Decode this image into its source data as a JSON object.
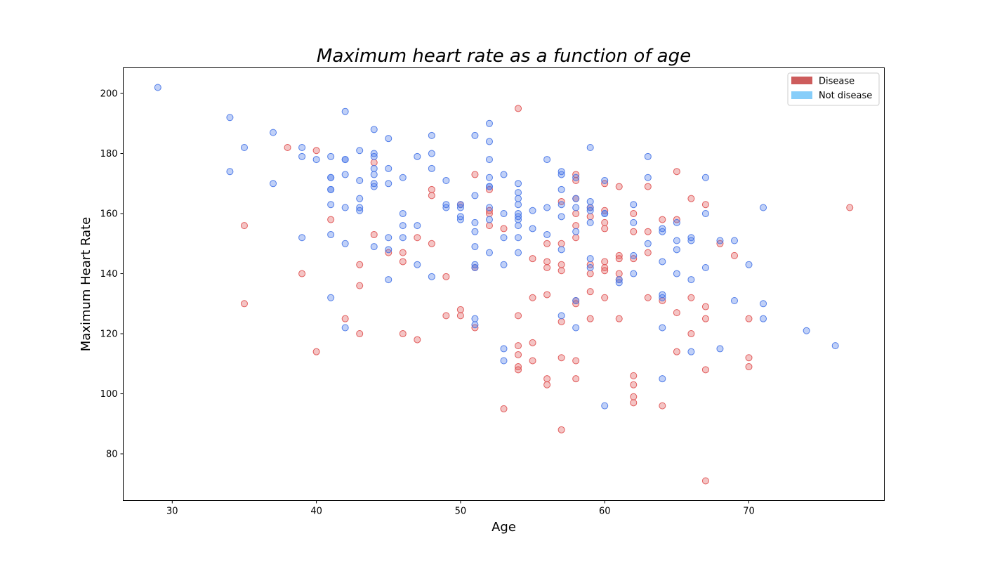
{
  "chart_data": {
    "type": "scatter",
    "title": "Maximum heart rate as a function of age",
    "xlabel": "Age",
    "ylabel": "Maximum Heart Rate",
    "xlim": [
      26.6,
      79.4
    ],
    "ylim": [
      64.45,
      208.55
    ],
    "xticks": [
      30,
      40,
      50,
      60,
      70
    ],
    "yticks": [
      80,
      100,
      120,
      140,
      160,
      180,
      200
    ],
    "grid": false,
    "legend_position": "top-right",
    "series": [
      {
        "name": "Disease",
        "color": "#e05555",
        "legend_color": "#cd5c5c",
        "points": [
          [
            38,
            182
          ],
          [
            40,
            181
          ],
          [
            44,
            177
          ],
          [
            35,
            156
          ],
          [
            41,
            158
          ],
          [
            35,
            130
          ],
          [
            39,
            140
          ],
          [
            40,
            114
          ],
          [
            42,
            125
          ],
          [
            43,
            120
          ],
          [
            43,
            136
          ],
          [
            43,
            143
          ],
          [
            44,
            153
          ],
          [
            45,
            147
          ],
          [
            46,
            147
          ],
          [
            46,
            144
          ],
          [
            46,
            120
          ],
          [
            47,
            152
          ],
          [
            47,
            118
          ],
          [
            48,
            168
          ],
          [
            48,
            166
          ],
          [
            48,
            150
          ],
          [
            49,
            139
          ],
          [
            49,
            126
          ],
          [
            50,
            163
          ],
          [
            50,
            128
          ],
          [
            50,
            126
          ],
          [
            51,
            173
          ],
          [
            51,
            142
          ],
          [
            51,
            122
          ],
          [
            52,
            168
          ],
          [
            52,
            161
          ],
          [
            52,
            160
          ],
          [
            52,
            156
          ],
          [
            53,
            155
          ],
          [
            53,
            95
          ],
          [
            54,
            195
          ],
          [
            54,
            126
          ],
          [
            54,
            116
          ],
          [
            54,
            113
          ],
          [
            54,
            109
          ],
          [
            54,
            108
          ],
          [
            55,
            145
          ],
          [
            55,
            132
          ],
          [
            55,
            117
          ],
          [
            55,
            111
          ],
          [
            56,
            150
          ],
          [
            56,
            144
          ],
          [
            56,
            142
          ],
          [
            56,
            133
          ],
          [
            56,
            105
          ],
          [
            56,
            103
          ],
          [
            57,
            164
          ],
          [
            57,
            150
          ],
          [
            57,
            143
          ],
          [
            57,
            141
          ],
          [
            57,
            124
          ],
          [
            57,
            112
          ],
          [
            57,
            88
          ],
          [
            58,
            173
          ],
          [
            58,
            171
          ],
          [
            58,
            165
          ],
          [
            58,
            160
          ],
          [
            58,
            156
          ],
          [
            58,
            152
          ],
          [
            58,
            131
          ],
          [
            58,
            130
          ],
          [
            58,
            111
          ],
          [
            58,
            105
          ],
          [
            59,
            162
          ],
          [
            59,
            159
          ],
          [
            59,
            143
          ],
          [
            59,
            140
          ],
          [
            59,
            134
          ],
          [
            59,
            125
          ],
          [
            60,
            170
          ],
          [
            60,
            161
          ],
          [
            60,
            157
          ],
          [
            60,
            155
          ],
          [
            60,
            144
          ],
          [
            60,
            142
          ],
          [
            60,
            141
          ],
          [
            60,
            132
          ],
          [
            61,
            169
          ],
          [
            61,
            146
          ],
          [
            61,
            145
          ],
          [
            61,
            140
          ],
          [
            61,
            138
          ],
          [
            61,
            125
          ],
          [
            62,
            160
          ],
          [
            62,
            154
          ],
          [
            62,
            145
          ],
          [
            62,
            106
          ],
          [
            62,
            103
          ],
          [
            62,
            99
          ],
          [
            62,
            97
          ],
          [
            63,
            169
          ],
          [
            63,
            154
          ],
          [
            63,
            147
          ],
          [
            63,
            132
          ],
          [
            64,
            158
          ],
          [
            64,
            131
          ],
          [
            64,
            96
          ],
          [
            65,
            174
          ],
          [
            65,
            158
          ],
          [
            65,
            127
          ],
          [
            65,
            114
          ],
          [
            66,
            165
          ],
          [
            66,
            132
          ],
          [
            66,
            120
          ],
          [
            67,
            163
          ],
          [
            67,
            129
          ],
          [
            67,
            125
          ],
          [
            67,
            108
          ],
          [
            67,
            71
          ],
          [
            68,
            150
          ],
          [
            69,
            146
          ],
          [
            70,
            125
          ],
          [
            70,
            112
          ],
          [
            70,
            109
          ],
          [
            77,
            162
          ]
        ]
      },
      {
        "name": "Not disease",
        "color": "#4a78e8",
        "legend_color": "#87cefa",
        "points": [
          [
            29,
            202
          ],
          [
            34,
            192
          ],
          [
            34,
            174
          ],
          [
            35,
            182
          ],
          [
            37,
            187
          ],
          [
            37,
            170
          ],
          [
            39,
            182
          ],
          [
            39,
            179
          ],
          [
            39,
            152
          ],
          [
            40,
            178
          ],
          [
            41,
            179
          ],
          [
            41,
            172
          ],
          [
            41,
            172
          ],
          [
            41,
            168
          ],
          [
            41,
            168
          ],
          [
            41,
            163
          ],
          [
            41,
            153
          ],
          [
            41,
            132
          ],
          [
            42,
            194
          ],
          [
            42,
            178
          ],
          [
            42,
            178
          ],
          [
            42,
            173
          ],
          [
            42,
            162
          ],
          [
            42,
            150
          ],
          [
            42,
            122
          ],
          [
            43,
            181
          ],
          [
            43,
            171
          ],
          [
            43,
            165
          ],
          [
            43,
            162
          ],
          [
            43,
            161
          ],
          [
            44,
            188
          ],
          [
            44,
            180
          ],
          [
            44,
            179
          ],
          [
            44,
            175
          ],
          [
            44,
            173
          ],
          [
            44,
            170
          ],
          [
            44,
            169
          ],
          [
            44,
            149
          ],
          [
            45,
            185
          ],
          [
            45,
            175
          ],
          [
            45,
            170
          ],
          [
            45,
            152
          ],
          [
            45,
            148
          ],
          [
            45,
            138
          ],
          [
            46,
            172
          ],
          [
            46,
            160
          ],
          [
            46,
            156
          ],
          [
            46,
            152
          ],
          [
            47,
            179
          ],
          [
            47,
            156
          ],
          [
            47,
            143
          ],
          [
            48,
            186
          ],
          [
            48,
            180
          ],
          [
            48,
            175
          ],
          [
            48,
            139
          ],
          [
            49,
            171
          ],
          [
            49,
            163
          ],
          [
            49,
            162
          ],
          [
            50,
            163
          ],
          [
            50,
            162
          ],
          [
            50,
            159
          ],
          [
            50,
            158
          ],
          [
            51,
            186
          ],
          [
            51,
            166
          ],
          [
            51,
            157
          ],
          [
            51,
            154
          ],
          [
            51,
            149
          ],
          [
            51,
            143
          ],
          [
            51,
            142
          ],
          [
            51,
            125
          ],
          [
            51,
            123
          ],
          [
            52,
            190
          ],
          [
            52,
            184
          ],
          [
            52,
            178
          ],
          [
            52,
            172
          ],
          [
            52,
            169
          ],
          [
            52,
            169
          ],
          [
            52,
            162
          ],
          [
            52,
            158
          ],
          [
            52,
            147
          ],
          [
            53,
            173
          ],
          [
            53,
            160
          ],
          [
            53,
            152
          ],
          [
            53,
            143
          ],
          [
            53,
            115
          ],
          [
            53,
            111
          ],
          [
            54,
            170
          ],
          [
            54,
            167
          ],
          [
            54,
            165
          ],
          [
            54,
            163
          ],
          [
            54,
            160
          ],
          [
            54,
            159
          ],
          [
            54,
            158
          ],
          [
            54,
            156
          ],
          [
            54,
            152
          ],
          [
            54,
            147
          ],
          [
            55,
            161
          ],
          [
            55,
            155
          ],
          [
            56,
            178
          ],
          [
            56,
            162
          ],
          [
            56,
            153
          ],
          [
            57,
            174
          ],
          [
            57,
            173
          ],
          [
            57,
            168
          ],
          [
            57,
            163
          ],
          [
            57,
            159
          ],
          [
            57,
            148
          ],
          [
            57,
            126
          ],
          [
            58,
            172
          ],
          [
            58,
            165
          ],
          [
            58,
            162
          ],
          [
            58,
            154
          ],
          [
            58,
            131
          ],
          [
            58,
            122
          ],
          [
            59,
            182
          ],
          [
            59,
            164
          ],
          [
            59,
            162
          ],
          [
            59,
            161
          ],
          [
            59,
            157
          ],
          [
            59,
            145
          ],
          [
            59,
            142
          ],
          [
            60,
            171
          ],
          [
            60,
            160
          ],
          [
            60,
            160
          ],
          [
            60,
            96
          ],
          [
            61,
            138
          ],
          [
            61,
            137
          ],
          [
            62,
            163
          ],
          [
            62,
            157
          ],
          [
            62,
            146
          ],
          [
            62,
            140
          ],
          [
            63,
            179
          ],
          [
            63,
            172
          ],
          [
            63,
            150
          ],
          [
            64,
            155
          ],
          [
            64,
            154
          ],
          [
            64,
            144
          ],
          [
            64,
            133
          ],
          [
            64,
            132
          ],
          [
            64,
            122
          ],
          [
            64,
            105
          ],
          [
            65,
            157
          ],
          [
            65,
            151
          ],
          [
            65,
            148
          ],
          [
            65,
            140
          ],
          [
            66,
            152
          ],
          [
            66,
            151
          ],
          [
            66,
            138
          ],
          [
            66,
            114
          ],
          [
            67,
            172
          ],
          [
            67,
            160
          ],
          [
            67,
            142
          ],
          [
            68,
            151
          ],
          [
            68,
            115
          ],
          [
            69,
            151
          ],
          [
            69,
            131
          ],
          [
            70,
            143
          ],
          [
            71,
            162
          ],
          [
            71,
            130
          ],
          [
            71,
            125
          ],
          [
            74,
            121
          ],
          [
            76,
            116
          ]
        ]
      }
    ]
  }
}
